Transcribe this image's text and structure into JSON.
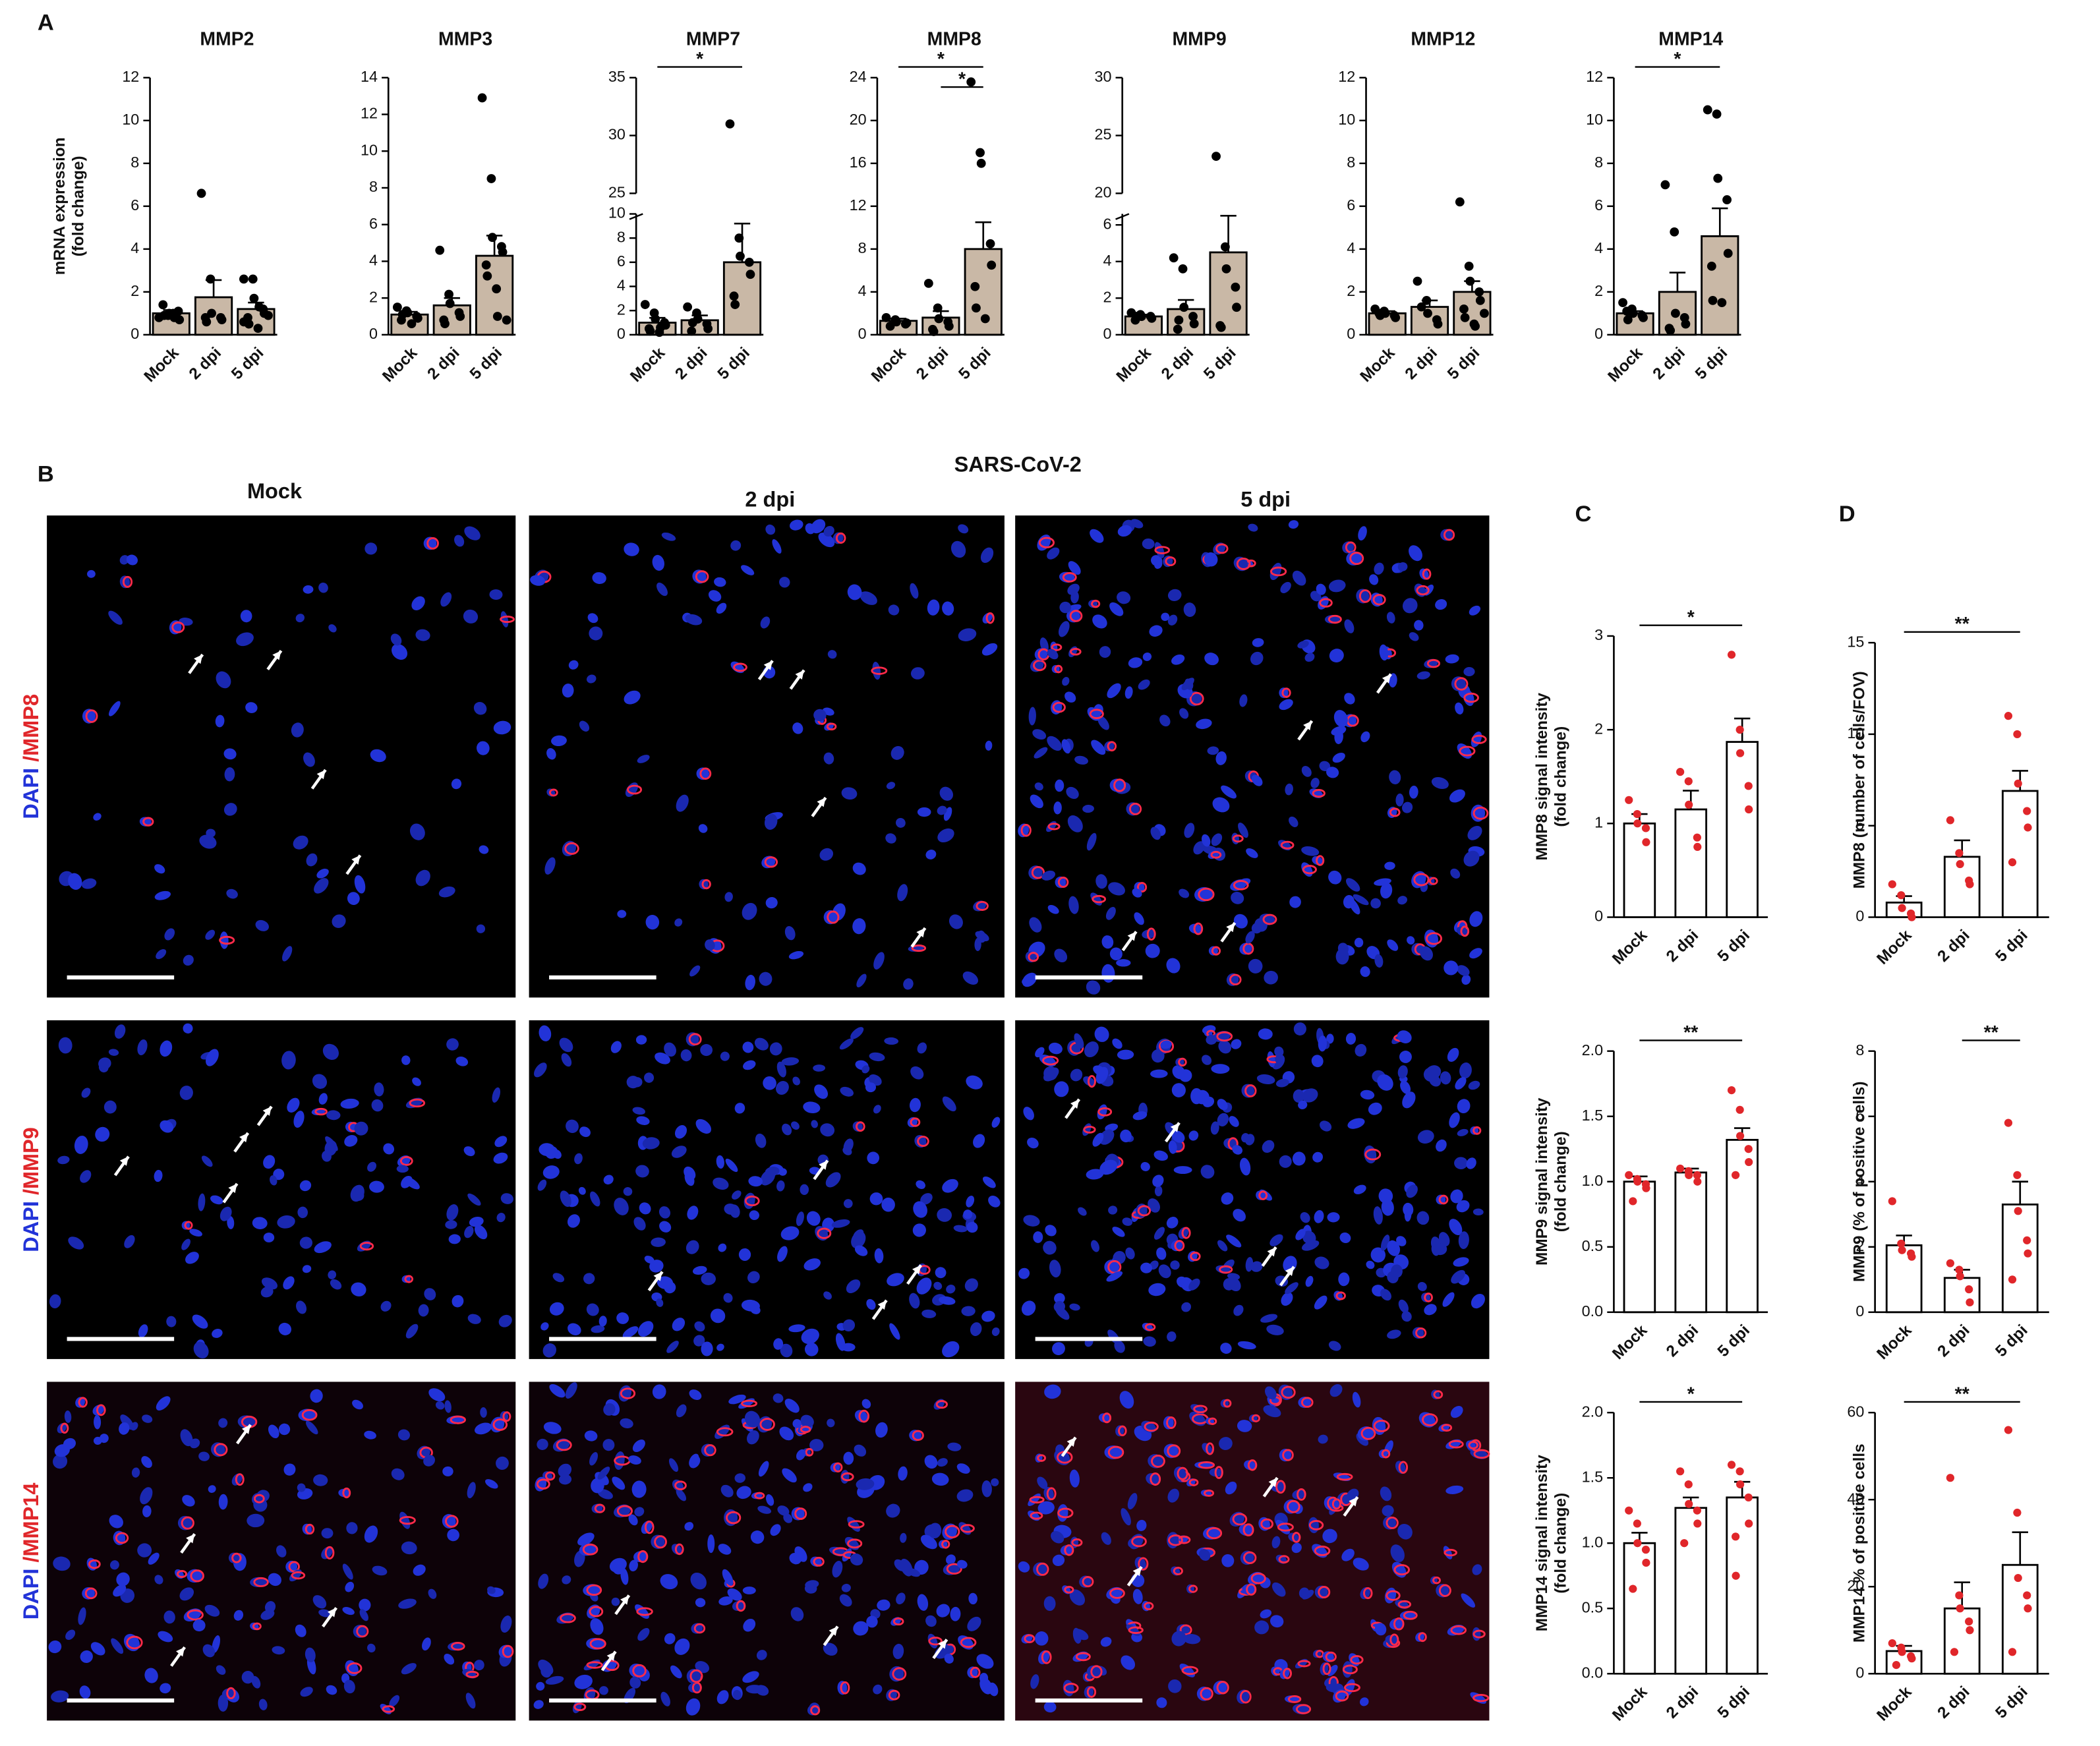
{
  "panel_labels": [
    "A",
    "B",
    "C",
    "D"
  ],
  "micrographs": {
    "title": "SARS-CoV-2",
    "columns": [
      "Mock",
      "2 dpi",
      "5 dpi"
    ],
    "rows": [
      {
        "stain": "DAPI",
        "marker": "/MMP8"
      },
      {
        "stain": "DAPI",
        "marker": "/MMP9"
      },
      {
        "stain": "DAPI",
        "marker": "/MMP14"
      }
    ]
  },
  "chart_data": [
    {
      "type": "bar",
      "title": "MMP2",
      "ylabel": [
        "mRNA expression",
        "(fold change)"
      ],
      "color": "#c9b8a6",
      "point_color": "#000000",
      "categories": [
        "Mock",
        "2 dpi",
        "5 dpi"
      ],
      "values": [
        1.0,
        1.75,
        1.2
      ],
      "errors": [
        0.15,
        0.8,
        0.3
      ],
      "points": [
        [
          0.8,
          0.9,
          1.0,
          1.1,
          0.7,
          1.4,
          0.9,
          1.0,
          0.8
        ],
        [
          6.6,
          2.6,
          1.0,
          0.8,
          0.7,
          0.8,
          0.6
        ],
        [
          2.6,
          2.6,
          1.7,
          1.2,
          1.0,
          0.8,
          0.5,
          0.3,
          1.3,
          0.9,
          0.6
        ]
      ],
      "ylim": [
        0,
        12
      ],
      "yticks": [
        0,
        2,
        4,
        6,
        8,
        10,
        12
      ],
      "significance": []
    },
    {
      "type": "bar",
      "title": "MMP3",
      "color": "#c9b8a6",
      "point_color": "#000000",
      "categories": [
        "Mock",
        "2 dpi",
        "5 dpi"
      ],
      "values": [
        1.1,
        1.6,
        4.3
      ],
      "errors": [
        0.15,
        0.4,
        1.1
      ],
      "points": [
        [
          1.5,
          1.3,
          1.2,
          1.0,
          0.9,
          0.8,
          1.1,
          0.6
        ],
        [
          4.6,
          2.2,
          1.7,
          1.2,
          1.0,
          0.8,
          0.6
        ],
        [
          12.9,
          8.5,
          5.3,
          4.8,
          4.5,
          3.8,
          3.2,
          2.5,
          1.0,
          0.8
        ]
      ],
      "ylim": [
        0,
        14
      ],
      "yticks": [
        0,
        2,
        4,
        6,
        8,
        10,
        12,
        14
      ],
      "significance": []
    },
    {
      "type": "bar",
      "title": "MMP7",
      "color": "#c9b8a6",
      "point_color": "#000000",
      "categories": [
        "Mock",
        "2 dpi",
        "5 dpi"
      ],
      "values": [
        1.0,
        1.2,
        6.0
      ],
      "errors": [
        0.4,
        0.4,
        3.2
      ],
      "points": [
        [
          2.5,
          1.8,
          1.3,
          1.0,
          0.8,
          0.5,
          0.3,
          0.2,
          0.6
        ],
        [
          2.3,
          1.8,
          1.3,
          0.9,
          0.5,
          0.3,
          1.0
        ],
        [
          31,
          8,
          6.5,
          6,
          5,
          3.2,
          2.5
        ]
      ],
      "segments": [
        {
          "ylim": [
            0,
            10
          ],
          "yticks": [
            0,
            2,
            4,
            6,
            8,
            10
          ]
        },
        {
          "ylim": [
            25,
            35
          ],
          "yticks": [
            25,
            30,
            35
          ]
        }
      ],
      "significance": [
        {
          "pair": [
            "Mock",
            "5 dpi"
          ],
          "label": "*"
        }
      ]
    },
    {
      "type": "bar",
      "title": "MMP8",
      "color": "#c9b8a6",
      "point_color": "#000000",
      "categories": [
        "Mock",
        "2 dpi",
        "5 dpi"
      ],
      "values": [
        1.3,
        1.6,
        8.0
      ],
      "errors": [
        0.2,
        0.6,
        2.5
      ],
      "points": [
        [
          1.6,
          1.4,
          1.2,
          1.0,
          1.1,
          0.8
        ],
        [
          4.8,
          2.5,
          1.5,
          1.2,
          0.8,
          0.5,
          0.3
        ],
        [
          23.6,
          17,
          16,
          8.5,
          6.5,
          4.5,
          2.5,
          1.5
        ]
      ],
      "ylim": [
        0,
        24
      ],
      "yticks": [
        0,
        4,
        8,
        12,
        16,
        20,
        24
      ],
      "significance": [
        {
          "pair": [
            "Mock",
            "5 dpi"
          ],
          "label": "*"
        },
        {
          "pair": [
            "2 dpi",
            "5 dpi"
          ],
          "label": "*"
        }
      ]
    },
    {
      "type": "bar",
      "title": "MMP9",
      "color": "#c9b8a6",
      "point_color": "#000000",
      "categories": [
        "Mock",
        "2 dpi",
        "5 dpi"
      ],
      "values": [
        1.0,
        1.4,
        4.5
      ],
      "errors": [
        0.1,
        0.5,
        2.0
      ],
      "points": [
        [
          1.2,
          1.1,
          1.0,
          1.0,
          0.9,
          0.8,
          1.0
        ],
        [
          4.2,
          3.6,
          1.5,
          1.0,
          0.6,
          0.3,
          0.8
        ],
        [
          23.2,
          4.8,
          3.6,
          2.6,
          1.5,
          0.5,
          0.4
        ]
      ],
      "segments": [
        {
          "ylim": [
            0,
            6.6
          ],
          "yticks": [
            0,
            2,
            4,
            6
          ]
        },
        {
          "ylim": [
            20,
            30
          ],
          "yticks": [
            20,
            25,
            30
          ]
        }
      ],
      "significance": []
    },
    {
      "type": "bar",
      "title": "MMP12",
      "color": "#c9b8a6",
      "point_color": "#000000",
      "categories": [
        "Mock",
        "2 dpi",
        "5 dpi"
      ],
      "values": [
        1.0,
        1.3,
        2.0
      ],
      "errors": [
        0.1,
        0.3,
        0.5
      ],
      "points": [
        [
          1.2,
          1.1,
          1.0,
          0.9,
          0.8,
          1.0,
          0.9
        ],
        [
          2.5,
          1.6,
          1.0,
          0.7,
          0.5,
          1.3
        ],
        [
          6.2,
          3.2,
          2.5,
          2.0,
          1.6,
          1.2,
          0.8,
          0.5,
          0.4,
          1.0
        ]
      ],
      "ylim": [
        0,
        12
      ],
      "yticks": [
        0,
        2,
        4,
        6,
        8,
        10,
        12
      ],
      "significance": []
    },
    {
      "type": "bar",
      "title": "MMP14",
      "color": "#c9b8a6",
      "point_color": "#000000",
      "categories": [
        "Mock",
        "2 dpi",
        "5 dpi"
      ],
      "values": [
        1.0,
        2.0,
        4.6
      ],
      "errors": [
        0.1,
        0.9,
        1.3
      ],
      "points": [
        [
          1.5,
          1.2,
          1.0,
          0.9,
          0.8,
          1.1,
          0.7
        ],
        [
          7.0,
          4.8,
          1.0,
          0.8,
          0.5,
          0.3,
          0.2
        ],
        [
          10.5,
          10.3,
          7.3,
          6.3,
          3.8,
          3.2,
          1.6,
          1.5
        ]
      ],
      "ylim": [
        0,
        12
      ],
      "yticks": [
        0,
        2,
        4,
        6,
        8,
        10,
        12
      ],
      "significance": [
        {
          "pair": [
            "Mock",
            "5 dpi"
          ],
          "label": "*"
        }
      ]
    },
    {
      "type": "bar",
      "ylabel": [
        "MMP8 signal intensity",
        "(fold change)"
      ],
      "color": "#ffffff",
      "point_color": "#e0262a",
      "categories": [
        "Mock",
        "2 dpi",
        "5 dpi"
      ],
      "values": [
        1.0,
        1.15,
        1.87
      ],
      "errors": [
        0.1,
        0.2,
        0.25
      ],
      "points": [
        [
          1.25,
          1.1,
          1.0,
          0.95,
          0.8
        ],
        [
          1.55,
          1.45,
          1.2,
          0.85,
          0.75
        ],
        [
          2.8,
          2.0,
          1.75,
          1.4,
          1.15
        ]
      ],
      "ylim": [
        0,
        3
      ],
      "yticks": [
        0,
        1,
        2,
        3
      ],
      "significance": [
        {
          "pair": [
            "Mock",
            "5 dpi"
          ],
          "label": "*"
        }
      ]
    },
    {
      "type": "bar",
      "ylabel": [
        "MMP9 signal intensity",
        "(fold change)"
      ],
      "color": "#ffffff",
      "point_color": "#e0262a",
      "categories": [
        "Mock",
        "2 dpi",
        "5 dpi"
      ],
      "values": [
        1.0,
        1.07,
        1.32
      ],
      "errors": [
        0.04,
        0.03,
        0.09
      ],
      "points": [
        [
          1.05,
          1.02,
          1.0,
          0.98,
          0.95,
          0.85
        ],
        [
          1.1,
          1.08,
          1.05,
          1.05,
          1.0
        ],
        [
          1.7,
          1.55,
          1.35,
          1.25,
          1.15,
          1.05
        ]
      ],
      "ylim": [
        0,
        2
      ],
      "yticks": [
        {
          "value": 0,
          "label": "0.0"
        },
        0.5,
        {
          "value": 1,
          "label": "1.0"
        },
        1.5,
        {
          "value": 2,
          "label": "2.0"
        }
      ],
      "significance": [
        {
          "pair": [
            "Mock",
            "5 dpi"
          ],
          "label": "**"
        }
      ]
    },
    {
      "type": "bar",
      "ylabel": [
        "MMP14 signal intensity",
        "(fold change)"
      ],
      "color": "#ffffff",
      "point_color": "#e0262a",
      "categories": [
        "Mock",
        "2 dpi",
        "5 dpi"
      ],
      "values": [
        1.0,
        1.27,
        1.35
      ],
      "errors": [
        0.08,
        0.08,
        0.12
      ],
      "points": [
        [
          1.25,
          1.15,
          1.0,
          0.95,
          0.85,
          0.65
        ],
        [
          1.55,
          1.45,
          1.3,
          1.25,
          1.15,
          1.0
        ],
        [
          1.6,
          1.55,
          1.45,
          1.35,
          1.15,
          1.05,
          0.75
        ]
      ],
      "ylim": [
        0,
        2
      ],
      "yticks": [
        {
          "value": 0,
          "label": "0.0"
        },
        0.5,
        {
          "value": 1,
          "label": "1.0"
        },
        1.5,
        {
          "value": 2,
          "label": "2.0"
        }
      ],
      "significance": [
        {
          "pair": [
            "Mock",
            "5 dpi"
          ],
          "label": "*"
        }
      ]
    },
    {
      "type": "bar",
      "ylabel": [
        "MMP8 (number of cells/FOV)"
      ],
      "color": "#ffffff",
      "point_color": "#e0262a",
      "categories": [
        "Mock",
        "2 dpi",
        "5 dpi"
      ],
      "values": [
        0.8,
        3.3,
        6.9
      ],
      "errors": [
        0.35,
        0.9,
        1.1
      ],
      "points": [
        [
          1.8,
          1.2,
          0.5,
          0.2,
          0
        ],
        [
          5.3,
          3.5,
          2.9,
          2.0,
          1.8
        ],
        [
          11,
          10,
          7.3,
          5.8,
          4.9,
          3.0
        ]
      ],
      "ylim": [
        0,
        15
      ],
      "yticks": [
        0,
        5,
        10,
        15
      ],
      "significance": [
        {
          "pair": [
            "Mock",
            "5 dpi"
          ],
          "label": "**"
        }
      ]
    },
    {
      "type": "bar",
      "ylabel": [
        "MMP9 (% of positive cells)"
      ],
      "color": "#ffffff",
      "point_color": "#e0262a",
      "categories": [
        "Mock",
        "2 dpi",
        "5 dpi"
      ],
      "values": [
        2.05,
        1.05,
        3.3
      ],
      "errors": [
        0.3,
        0.25,
        0.7
      ],
      "points": [
        [
          3.4,
          2.1,
          1.9,
          1.8,
          1.7
        ],
        [
          1.5,
          1.3,
          1.1,
          0.7,
          0.3
        ],
        [
          5.8,
          4.2,
          3.1,
          2.2,
          1.8,
          1.0
        ]
      ],
      "ylim": [
        0,
        8
      ],
      "yticks": [
        0,
        2,
        4,
        6,
        8
      ],
      "significance": [
        {
          "pair": [
            "2 dpi",
            "5 dpi"
          ],
          "label": "**"
        }
      ]
    },
    {
      "type": "bar",
      "ylabel": [
        "MMP14 % of positive cells"
      ],
      "color": "#ffffff",
      "point_color": "#e0262a",
      "categories": [
        "Mock",
        "2 dpi",
        "5 dpi"
      ],
      "values": [
        5.2,
        15,
        25
      ],
      "errors": [
        1.2,
        6,
        7.5
      ],
      "points": [
        [
          7,
          6,
          5,
          4,
          3.5,
          2
        ],
        [
          45,
          18,
          15,
          12,
          10,
          5
        ],
        [
          56,
          37,
          22,
          18,
          15,
          5
        ]
      ],
      "ylim": [
        0,
        60
      ],
      "yticks": [
        0,
        20,
        40,
        60
      ],
      "significance": [
        {
          "pair": [
            "Mock",
            "5 dpi"
          ],
          "label": "**"
        }
      ]
    }
  ]
}
